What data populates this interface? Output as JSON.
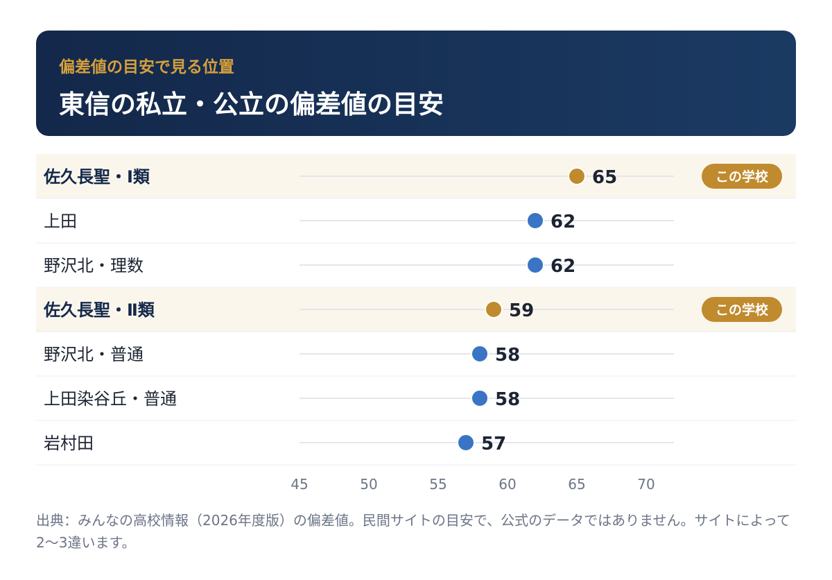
{
  "header": {
    "subtitle": "偏差値の目安で見る位置",
    "title": "東信の私立・公立の偏差値の目安"
  },
  "chart_data": {
    "type": "scatter",
    "rows": [
      {
        "label": "佐久長聖・Ⅰ類",
        "value": 65,
        "highlight": true,
        "badge": "この学校"
      },
      {
        "label": "上田",
        "value": 62,
        "highlight": false
      },
      {
        "label": "野沢北・理数",
        "value": 62,
        "highlight": false
      },
      {
        "label": "佐久長聖・Ⅱ類",
        "value": 59,
        "highlight": true,
        "badge": "この学校"
      },
      {
        "label": "野沢北・普通",
        "value": 58,
        "highlight": false
      },
      {
        "label": "上田染谷丘・普通",
        "value": 58,
        "highlight": false
      },
      {
        "label": "岩村田",
        "value": 57,
        "highlight": false
      }
    ],
    "x_ticks": [
      45,
      50,
      55,
      60,
      65,
      70
    ],
    "xlim": [
      45,
      72
    ],
    "colors": {
      "highlight_dot": "#c08a2e",
      "normal_dot": "#3a74c4",
      "highlight_row_bg": "#fbf6ec",
      "badge_bg": "#c08a2e",
      "badge_text": "#ffffff",
      "track": "#e3e6eb",
      "row_divider": "#e9ecf0",
      "value_text": "#1c2433",
      "label_text": "#1c2433",
      "highlight_label_text": "#13284a",
      "tick_text": "#6c7585"
    }
  },
  "footnote": "出典：みんなの高校情報（2026年度版）の偏差値。民間サイトの目安で、公式のデータではありません。サイトによって2〜3違います。"
}
